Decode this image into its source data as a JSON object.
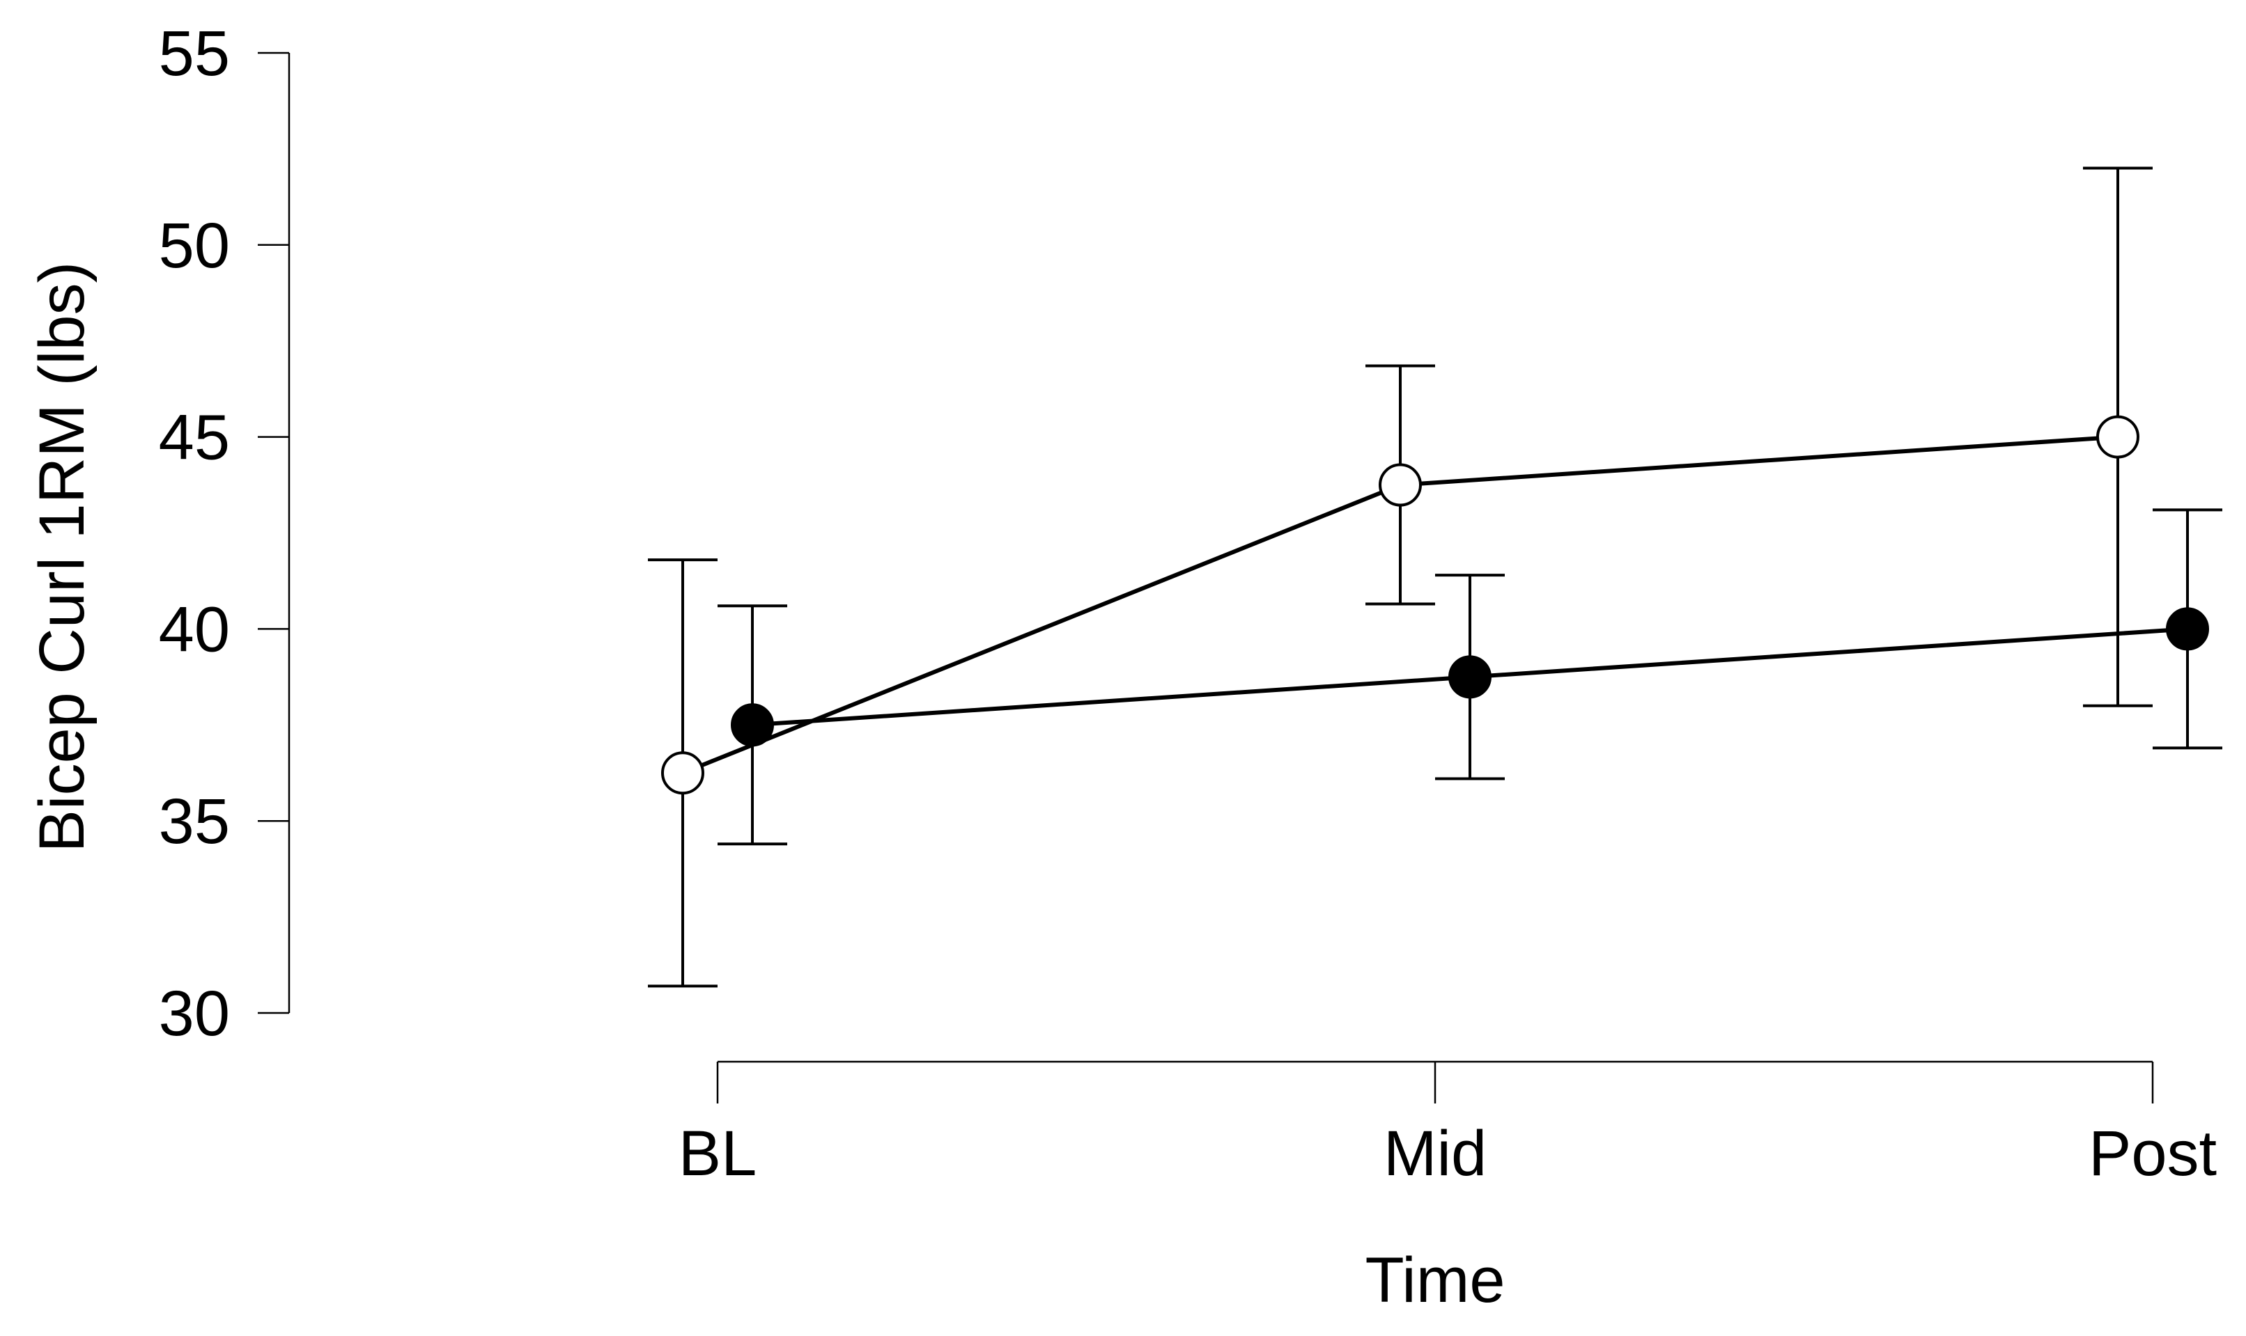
{
  "chart_data": {
    "type": "line",
    "title": "",
    "xlabel": "Time",
    "ylabel": "Bicep Curl 1RM (lbs)",
    "categories": [
      "BL",
      "Mid",
      "Post"
    ],
    "ylim": [
      30,
      55
    ],
    "yticks": [
      30,
      35,
      40,
      45,
      50,
      55
    ],
    "grid": false,
    "legend": "none",
    "series": [
      {
        "marker": "open-circle",
        "color": "#000000",
        "fill": "#ffffff",
        "values": [
          36.25,
          43.75,
          45.0
        ],
        "err_low": [
          30.7,
          40.65,
          38.0
        ],
        "err_high": [
          41.8,
          46.85,
          52.0
        ]
      },
      {
        "marker": "filled-circle",
        "color": "#000000",
        "fill": "#000000",
        "values": [
          37.5,
          38.75,
          40.0
        ],
        "err_low": [
          34.4,
          36.1,
          36.9
        ],
        "err_high": [
          40.6,
          41.4,
          43.1
        ]
      }
    ]
  }
}
